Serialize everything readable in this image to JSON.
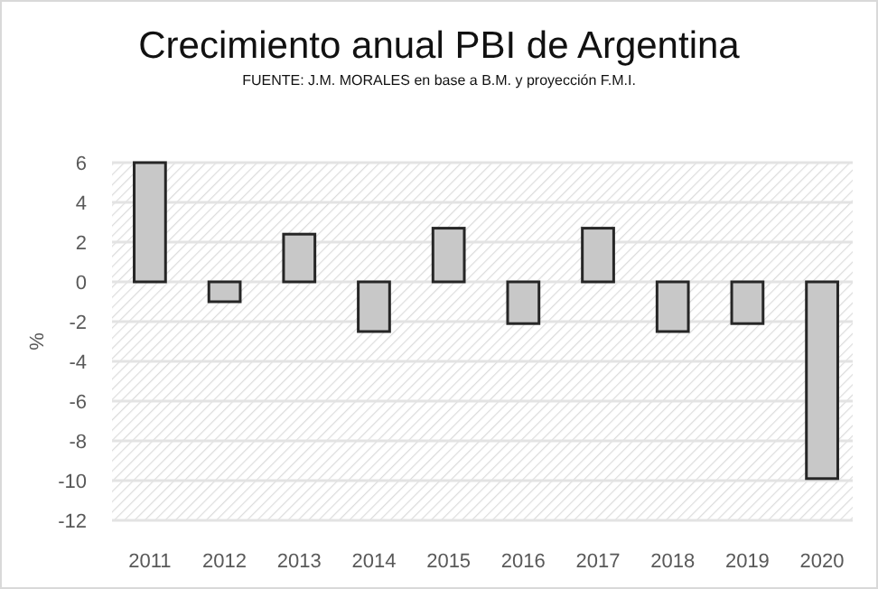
{
  "chart_data": {
    "type": "bar",
    "title": "Crecimiento anual PBI de Argentina",
    "subtitle": "FUENTE: J.M. MORALES en base a B.M. y proyección F.M.I.",
    "ylabel": "%",
    "categories": [
      "2011",
      "2012",
      "2013",
      "2014",
      "2015",
      "2016",
      "2017",
      "2018",
      "2019",
      "2020"
    ],
    "values": [
      6.0,
      -1.0,
      2.4,
      -2.5,
      2.7,
      -2.1,
      2.7,
      -2.5,
      -2.1,
      -9.9
    ],
    "color": "#c8c8c8",
    "ylim": [
      -12,
      6
    ],
    "yticks": [
      -12,
      -10,
      -8,
      -6,
      -4,
      -2,
      0,
      2,
      4,
      6
    ],
    "grid": true
  }
}
